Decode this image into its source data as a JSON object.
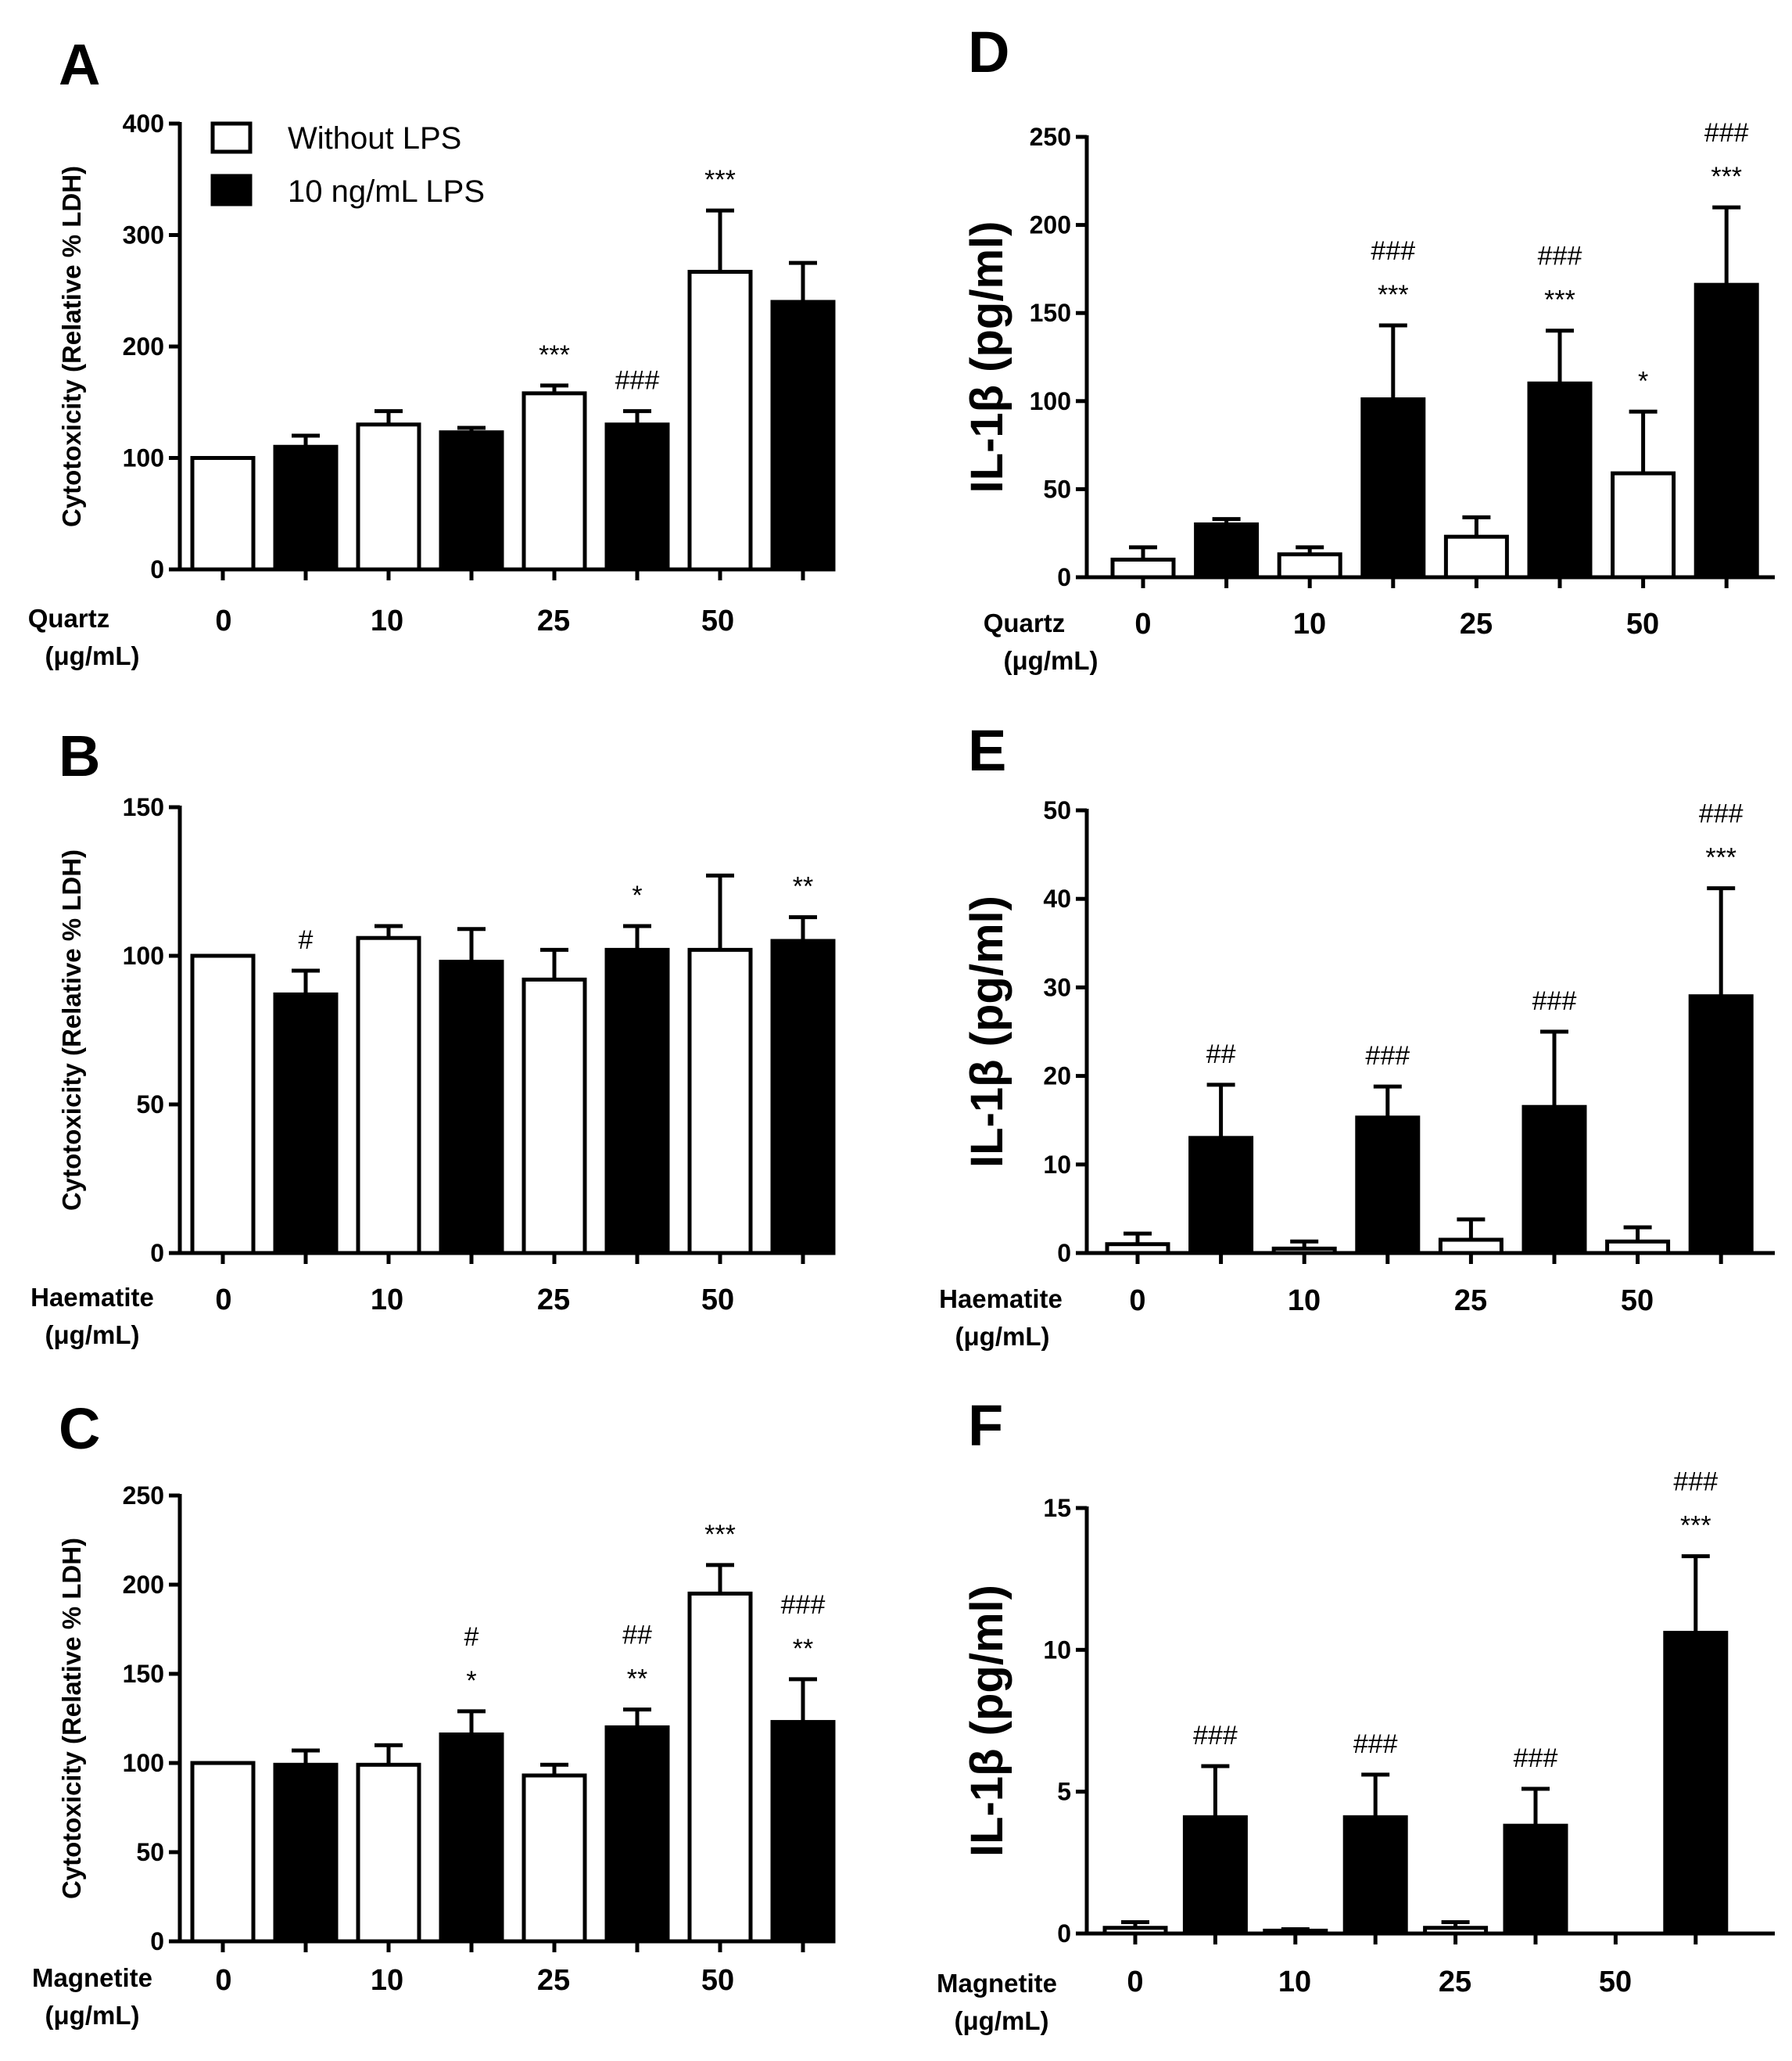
{
  "figure": {
    "legend": {
      "without_lps": "Without LPS",
      "with_lps": "10 ng/mL LPS"
    },
    "colors": {
      "without_lps": "#ffffff",
      "with_lps": "#000000",
      "stroke": "#000000"
    }
  },
  "chart_data": [
    {
      "panel": "A",
      "type": "bar",
      "title": "",
      "ylabel": "Cytotoxicity (Relative % LDH)",
      "xlabel": "Quartz",
      "xlabel_unit": "(μg/mL)",
      "categories": [
        "0",
        "10",
        "25",
        "50"
      ],
      "ylim": [
        0,
        400
      ],
      "yticks": [
        0,
        100,
        200,
        300,
        400
      ],
      "series": [
        {
          "name": "Without LPS",
          "values": [
            100,
            130,
            158,
            267
          ],
          "errors": [
            0,
            12,
            7,
            55
          ],
          "labels": [
            "",
            "",
            "***",
            "***"
          ]
        },
        {
          "name": "10 ng/mL LPS",
          "values": [
            110,
            123,
            130,
            240
          ],
          "errors": [
            10,
            4,
            12,
            35
          ],
          "labels": [
            "",
            "",
            "###",
            ""
          ]
        }
      ]
    },
    {
      "panel": "B",
      "type": "bar",
      "title": "",
      "ylabel": "Cytotoxicity (Relative % LDH)",
      "xlabel": "Haematite",
      "xlabel_unit": "(μg/mL)",
      "categories": [
        "0",
        "10",
        "25",
        "50"
      ],
      "ylim": [
        0,
        150
      ],
      "yticks": [
        0,
        50,
        100,
        150
      ],
      "series": [
        {
          "name": "Without LPS",
          "values": [
            100,
            106,
            92,
            102
          ],
          "errors": [
            0,
            4,
            10,
            25
          ],
          "labels": [
            "",
            "",
            "",
            ""
          ]
        },
        {
          "name": "10 ng/mL LPS",
          "values": [
            87,
            98,
            102,
            105
          ],
          "errors": [
            8,
            11,
            8,
            8
          ],
          "labels": [
            "#",
            "",
            "*",
            "**"
          ]
        }
      ]
    },
    {
      "panel": "C",
      "type": "bar",
      "title": "",
      "ylabel": "Cytotoxicity (Relative % LDH)",
      "xlabel": "Magnetite",
      "xlabel_unit": "(μg/mL)",
      "categories": [
        "0",
        "10",
        "25",
        "50"
      ],
      "ylim": [
        0,
        250
      ],
      "yticks": [
        0,
        50,
        100,
        150,
        200,
        250
      ],
      "series": [
        {
          "name": "Without LPS",
          "values": [
            100,
            99,
            93,
            195
          ],
          "errors": [
            0,
            11,
            6,
            16
          ],
          "labels": [
            "",
            "",
            "",
            "***"
          ]
        },
        {
          "name": "10 ng/mL LPS",
          "values": [
            99,
            116,
            120,
            123
          ],
          "errors": [
            8,
            13,
            10,
            24
          ],
          "labels": [
            "",
            "#\n*",
            "##\n**",
            "###\n**"
          ]
        }
      ]
    },
    {
      "panel": "D",
      "type": "bar",
      "title": "",
      "ylabel": "IL-1β (pg/ml)",
      "xlabel": "Quartz",
      "xlabel_unit": "(μg/mL)",
      "categories": [
        "0",
        "10",
        "25",
        "50"
      ],
      "ylim": [
        0,
        250
      ],
      "yticks": [
        0,
        50,
        100,
        150,
        200,
        250
      ],
      "series": [
        {
          "name": "Without LPS",
          "values": [
            10,
            13,
            23,
            59
          ],
          "errors": [
            7,
            4,
            11,
            35
          ],
          "labels": [
            "",
            "",
            "",
            "*"
          ]
        },
        {
          "name": "10 ng/mL LPS",
          "values": [
            30,
            101,
            110,
            166
          ],
          "errors": [
            3,
            42,
            30,
            44
          ],
          "labels": [
            "",
            "###\n***",
            "###\n***",
            "###\n***"
          ]
        }
      ]
    },
    {
      "panel": "E",
      "type": "bar",
      "title": "",
      "ylabel": "IL-1β (pg/ml)",
      "xlabel": "Haematite",
      "xlabel_unit": "(μg/mL)",
      "categories": [
        "0",
        "10",
        "25",
        "50"
      ],
      "ylim": [
        0,
        50
      ],
      "yticks": [
        0,
        10,
        20,
        30,
        40,
        50
      ],
      "series": [
        {
          "name": "Without LPS",
          "values": [
            1,
            0.5,
            1.5,
            1.3
          ],
          "errors": [
            1.2,
            0.8,
            2.3,
            1.6
          ],
          "labels": [
            "",
            "",
            "",
            ""
          ]
        },
        {
          "name": "10 ng/mL LPS",
          "values": [
            13,
            15.3,
            16.5,
            29
          ],
          "errors": [
            6,
            3.5,
            8.5,
            12.2
          ],
          "labels": [
            "##",
            "###",
            "###",
            "###\n***"
          ]
        }
      ]
    },
    {
      "panel": "F",
      "type": "bar",
      "title": "",
      "ylabel": "IL-1β (pg/ml)",
      "xlabel": "Magnetite",
      "xlabel_unit": "(μg/mL)",
      "categories": [
        "0",
        "10",
        "25",
        "50"
      ],
      "ylim": [
        0,
        15
      ],
      "yticks": [
        0,
        5,
        10,
        15
      ],
      "series": [
        {
          "name": "Without LPS",
          "values": [
            0.2,
            0.1,
            0.2,
            0
          ],
          "errors": [
            0.2,
            0.05,
            0.2,
            0
          ],
          "labels": [
            "",
            "",
            "",
            ""
          ]
        },
        {
          "name": "10 ng/mL LPS",
          "values": [
            4.1,
            4.1,
            3.8,
            10.6
          ],
          "errors": [
            1.8,
            1.5,
            1.3,
            2.7
          ],
          "labels": [
            "###",
            "###",
            "###",
            "###\n***"
          ]
        }
      ]
    }
  ]
}
